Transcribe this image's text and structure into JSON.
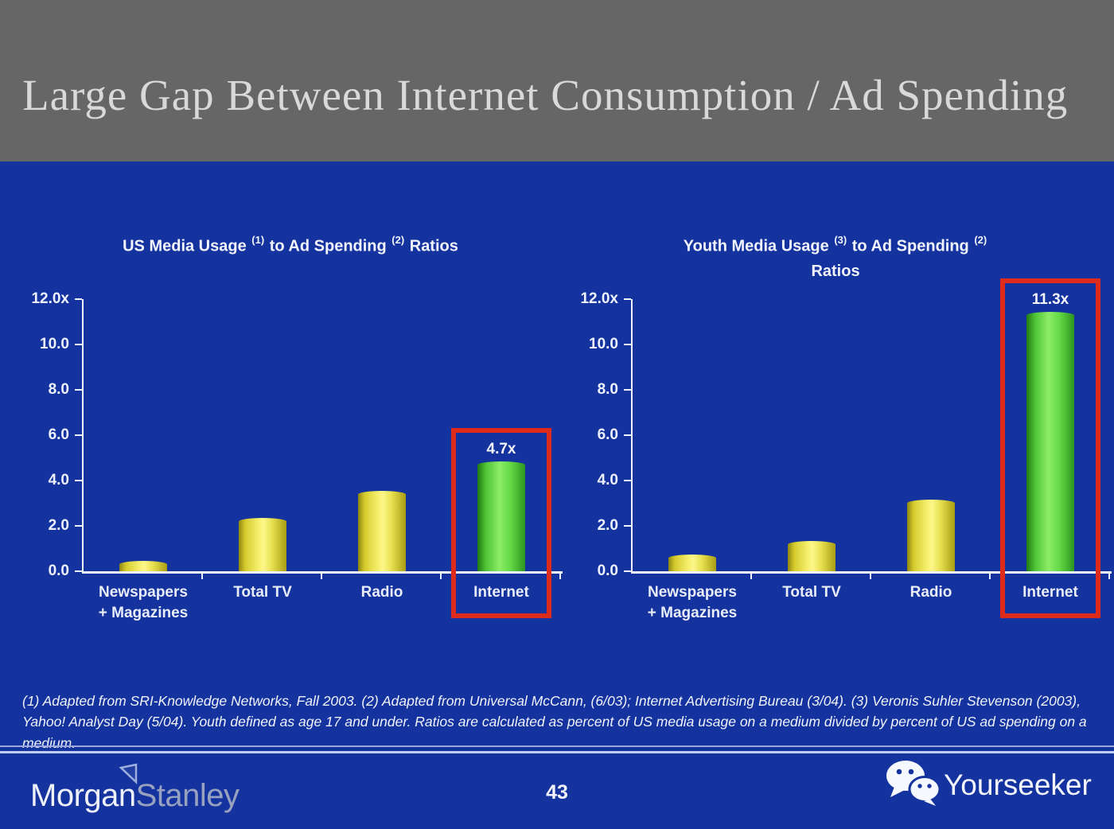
{
  "slide": {
    "title": "Large Gap Between Internet Consumption / Ad Spending",
    "page_number": "43",
    "footnote": "(1) Adapted from SRI-Knowledge Networks, Fall 2003.  (2) Adapted from Universal McCann, (6/03); Internet Advertising Bureau (3/04). (3) Veronis Suhler Stevenson (2003), Yahoo! Analyst Day (5/04).  Youth defined as age 17 and under.  Ratios are calculated as percent of US media usage on a medium divided by percent of US ad spending on a medium."
  },
  "branding": {
    "logo_morgan": "Morgan",
    "logo_stanley": "Stanley",
    "watermark": "Yourseeker",
    "wechat_icon": "wechat-chat-bubbles-icon",
    "ms_flag_icon": "morgan-stanley-flag-icon"
  },
  "colors": {
    "background_blue": "#15339e",
    "header_gray": "#666667",
    "bar_yellow": "#f7f272",
    "bar_green": "#5fd93f",
    "highlight_red": "#de2b1c",
    "axis_white": "#eef1fe",
    "title_gray_white": "#d9d9d9"
  },
  "chart_data": [
    {
      "type": "bar",
      "title": "US Media Usage (1) to Ad Spending (2) Ratios",
      "title_parts": [
        {
          "text": "US Media Usage "
        },
        {
          "sup": "(1)"
        },
        {
          "text": " to Ad Spending "
        },
        {
          "sup": "(2)"
        },
        {
          "text": " Ratios"
        }
      ],
      "categories": [
        "Newspapers + Magazines",
        "Total TV",
        "Radio",
        "Internet"
      ],
      "category_labels": [
        [
          "Newspapers",
          "+ Magazines"
        ],
        [
          "Total TV"
        ],
        [
          "Radio"
        ],
        [
          "Internet"
        ]
      ],
      "values": [
        0.3,
        2.2,
        3.4,
        4.7
      ],
      "bar_colors": [
        "yellow",
        "yellow",
        "yellow",
        "green"
      ],
      "bar_labels": [
        "",
        "",
        "",
        "4.7x"
      ],
      "highlight_index": 3,
      "y_ticks": [
        "12.0x",
        "10.0",
        "8.0",
        "6.0",
        "4.0",
        "2.0",
        "0.0"
      ],
      "ylim": [
        0,
        12
      ],
      "xlabel": "",
      "ylabel": "",
      "grid": false,
      "legend": "none"
    },
    {
      "type": "bar",
      "title": "Youth Media Usage (3) to Ad Spending (2) Ratios",
      "title_parts": [
        {
          "text": "Youth Media Usage "
        },
        {
          "sup": "(3)"
        },
        {
          "text": " to Ad Spending "
        },
        {
          "sup": "(2)"
        },
        {
          "br": true
        },
        {
          "text": "Ratios"
        }
      ],
      "categories": [
        "Newspapers + Magazines",
        "Total TV",
        "Radio",
        "Internet"
      ],
      "category_labels": [
        [
          "Newspapers",
          "+ Magazines"
        ],
        [
          "Total TV"
        ],
        [
          "Radio"
        ],
        [
          "Internet"
        ]
      ],
      "values": [
        0.6,
        1.2,
        3.0,
        11.3
      ],
      "bar_colors": [
        "yellow",
        "yellow",
        "yellow",
        "green"
      ],
      "bar_labels": [
        "",
        "",
        "",
        "11.3x"
      ],
      "highlight_index": 3,
      "y_ticks": [
        "12.0x",
        "10.0",
        "8.0",
        "6.0",
        "4.0",
        "2.0",
        "0.0"
      ],
      "ylim": [
        0,
        12
      ],
      "xlabel": "",
      "ylabel": "",
      "grid": false,
      "legend": "none"
    }
  ]
}
